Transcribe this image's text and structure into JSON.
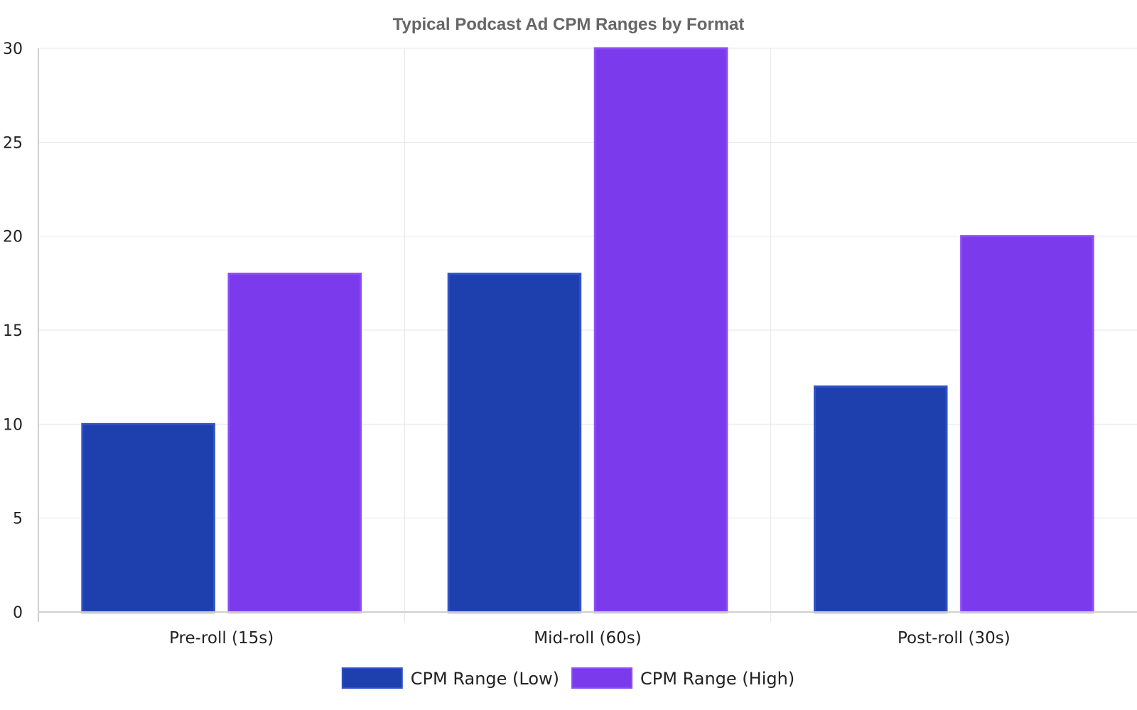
{
  "chart_data": {
    "type": "bar",
    "title": "Typical Podcast Ad CPM Ranges by Format",
    "categories": [
      "Pre-roll (15s)",
      "Mid-roll (60s)",
      "Post-roll (30s)"
    ],
    "series": [
      {
        "name": "CPM Range (Low)",
        "values": [
          10,
          18,
          12
        ],
        "color": "#1e40af",
        "border": "#2f52c7"
      },
      {
        "name": "CPM Range (High)",
        "values": [
          18,
          30,
          20
        ],
        "color": "#7c3aed",
        "border": "#8b4cf6"
      }
    ],
    "xlabel": "",
    "ylabel": "",
    "ylim": [
      0,
      30
    ],
    "yticks": [
      0,
      5,
      10,
      15,
      20,
      25,
      30
    ],
    "grid": true,
    "legend": "bottom-center"
  }
}
